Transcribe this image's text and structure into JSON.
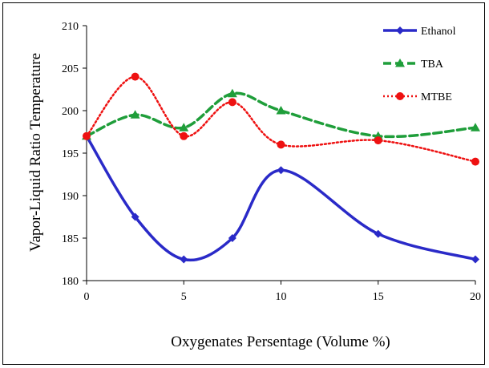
{
  "chart_data": {
    "type": "line",
    "title": "",
    "xlabel": "Oxygenates Persentage (Volume %)",
    "ylabel": "Vapor-Liquid Ratio Temperature",
    "xlim": [
      0,
      20
    ],
    "ylim": [
      180,
      210
    ],
    "xticks": [
      0,
      5,
      10,
      15,
      20
    ],
    "yticks": [
      180,
      185,
      190,
      195,
      200,
      205,
      210
    ],
    "grid": false,
    "legend_position": "top-right",
    "smooth": true,
    "series": [
      {
        "name": "Ethanol",
        "color": "#2a2ac8",
        "marker": "diamond",
        "line_style": "solid",
        "x": [
          0,
          2.5,
          5,
          7.5,
          10,
          15,
          20
        ],
        "y": [
          197,
          187.5,
          182.5,
          185,
          193,
          185.5,
          182.5
        ]
      },
      {
        "name": "TBA",
        "color": "#1f9e3a",
        "marker": "triangle",
        "line_style": "dashed",
        "x": [
          0,
          2.5,
          5,
          7.5,
          10,
          15,
          20
        ],
        "y": [
          197,
          199.5,
          198,
          202,
          200,
          197,
          198
        ]
      },
      {
        "name": "MTBE",
        "color": "#ee1111",
        "marker": "circle",
        "line_style": "dotted",
        "x": [
          0,
          2.5,
          5,
          7.5,
          10,
          15,
          20
        ],
        "y": [
          197,
          204,
          197,
          201,
          196,
          196.5,
          194
        ]
      }
    ]
  }
}
